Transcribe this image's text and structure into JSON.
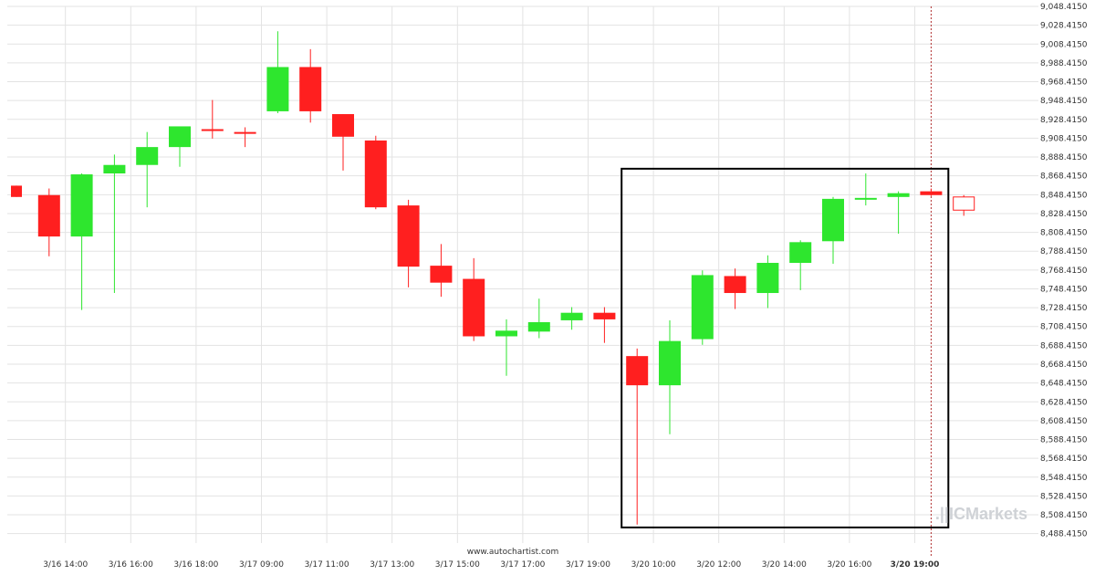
{
  "chart_data": {
    "type": "candlestick",
    "title": "",
    "xlabel": "",
    "ylabel": "",
    "ylim": [
      8478.415,
      9048.415
    ],
    "y_ticks": [
      9048.415,
      9028.415,
      9008.415,
      8988.415,
      8968.415,
      8948.415,
      8928.415,
      8908.415,
      8888.415,
      8868.415,
      8848.415,
      8828.415,
      8808.415,
      8788.415,
      8768.415,
      8748.415,
      8728.415,
      8708.415,
      8688.415,
      8668.415,
      8648.415,
      8628.415,
      8608.415,
      8588.415,
      8568.415,
      8548.415,
      8528.415,
      8508.415,
      8488.415
    ],
    "y_tick_labels": [
      "9,048.4150",
      "9,028.4150",
      "9,008.4150",
      "8,988.4150",
      "8,968.4150",
      "8,948.4150",
      "8,928.4150",
      "8,908.4150",
      "8,888.4150",
      "8,868.4150",
      "8,848.4150",
      "8,828.4150",
      "8,808.4150",
      "8,788.4150",
      "8,768.4150",
      "8,748.4150",
      "8,728.4150",
      "8,708.4150",
      "8,688.4150",
      "8,668.4150",
      "8,648.4150",
      "8,628.4150",
      "8,608.4150",
      "8,588.4150",
      "8,568.4150",
      "8,548.4150",
      "8,528.4150",
      "8,508.4150",
      "8,488.4150"
    ],
    "x_tick_labels": [
      "3/16 14:00",
      "3/16 16:00",
      "3/16 18:00",
      "3/17 09:00",
      "3/17 11:00",
      "3/17 13:00",
      "3/17 15:00",
      "3/17 17:00",
      "3/17 19:00",
      "3/20 10:00",
      "3/20 12:00",
      "3/20 14:00",
      "3/20 16:00",
      "3/20 19:00"
    ],
    "x_tick_index": [
      1.5,
      3.5,
      5.5,
      7.5,
      9.5,
      11.5,
      13.5,
      15.5,
      17.5,
      19.5,
      21.5,
      23.5,
      25.5,
      27.5
    ],
    "highlighted_x_label": "3/20 19:00",
    "candles": [
      {
        "o": 8858,
        "h": 8858,
        "l": 8846,
        "c": 8846
      },
      {
        "o": 8848,
        "h": 8855,
        "l": 8783,
        "c": 8804
      },
      {
        "o": 8804,
        "h": 8871,
        "l": 8726,
        "c": 8870
      },
      {
        "o": 8871,
        "h": 8891,
        "l": 8744,
        "c": 8880
      },
      {
        "o": 8880,
        "h": 8915,
        "l": 8835,
        "c": 8899
      },
      {
        "o": 8899,
        "h": 8920,
        "l": 8878,
        "c": 8921
      },
      {
        "o": 8918,
        "h": 8949,
        "l": 8908,
        "c": 8917
      },
      {
        "o": 8915,
        "h": 8920,
        "l": 8899,
        "c": 8914
      },
      {
        "o": 8937,
        "h": 9022,
        "l": 8935,
        "c": 8984
      },
      {
        "o": 8984,
        "h": 9003,
        "l": 8925,
        "c": 8937
      },
      {
        "o": 8934,
        "h": 8934,
        "l": 8874,
        "c": 8910
      },
      {
        "o": 8906,
        "h": 8911,
        "l": 8833,
        "c": 8835
      },
      {
        "o": 8837,
        "h": 8843,
        "l": 8750,
        "c": 8772
      },
      {
        "o": 8773,
        "h": 8796,
        "l": 8740,
        "c": 8755
      },
      {
        "o": 8759,
        "h": 8781,
        "l": 8693,
        "c": 8698
      },
      {
        "o": 8698,
        "h": 8716,
        "l": 8656,
        "c": 8704
      },
      {
        "o": 8703,
        "h": 8738,
        "l": 8696,
        "c": 8713
      },
      {
        "o": 8715,
        "h": 8729,
        "l": 8705,
        "c": 8723
      },
      {
        "o": 8723,
        "h": 8729,
        "l": 8691,
        "c": 8716
      },
      {
        "o": 8677,
        "h": 8685,
        "l": 8498,
        "c": 8646
      },
      {
        "o": 8646,
        "h": 8715,
        "l": 8594,
        "c": 8693
      },
      {
        "o": 8695,
        "h": 8768,
        "l": 8689,
        "c": 8763
      },
      {
        "o": 8762,
        "h": 8770,
        "l": 8727,
        "c": 8744
      },
      {
        "o": 8744,
        "h": 8784,
        "l": 8728,
        "c": 8776
      },
      {
        "o": 8776,
        "h": 8800,
        "l": 8747,
        "c": 8798
      },
      {
        "o": 8799,
        "h": 8846,
        "l": 8775,
        "c": 8844
      },
      {
        "o": 8844,
        "h": 8871,
        "l": 8837,
        "c": 8845
      },
      {
        "o": 8846,
        "h": 8852,
        "l": 8807,
        "c": 8850
      },
      {
        "o": 8852,
        "h": 8855,
        "l": 8847,
        "c": 8848
      },
      {
        "o": 8846,
        "h": 8848,
        "l": 8826,
        "c": 8832,
        "hollow": true
      }
    ],
    "pattern_box": {
      "start_index": 19,
      "end_index": 28.5,
      "low": 8495,
      "high": 8876
    },
    "dashed_vline_index": 28,
    "colors": {
      "up": "#2ee62e",
      "down": "#ff1f1f",
      "box": "#000000",
      "grid": "#e3e3e3",
      "vline": "#b03030"
    }
  },
  "source_label": "www.autochartist.com",
  "watermark": {
    "prefix": ".||",
    "brand": "ICMarkets"
  }
}
